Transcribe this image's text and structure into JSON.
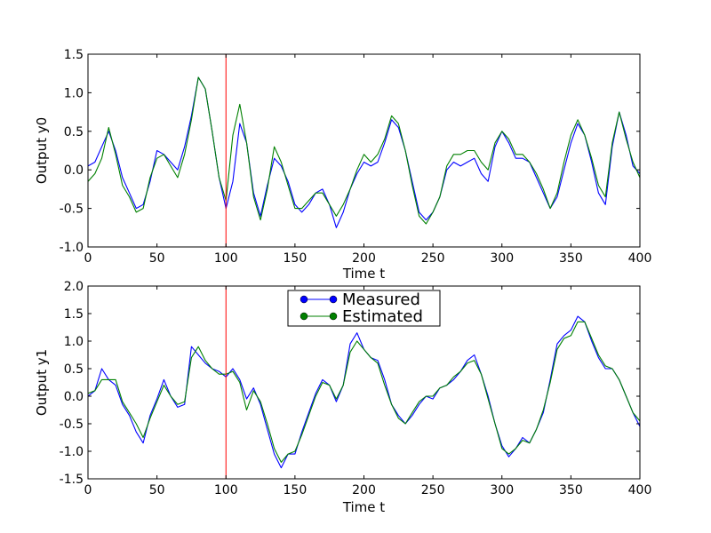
{
  "chart_data": [
    {
      "type": "line",
      "xlabel": "Time t",
      "ylabel": "Output y0",
      "xlim": [
        0,
        400
      ],
      "ylim": [
        -1.0,
        1.5
      ],
      "xticks": [
        "0",
        "50",
        "100",
        "150",
        "200",
        "250",
        "300",
        "350",
        "400"
      ],
      "yticks": [
        "-1.0",
        "-0.5",
        "0.0",
        "0.5",
        "1.0",
        "1.5"
      ],
      "grid": false,
      "vline": {
        "x": 100,
        "color": "#ff0000"
      },
      "x": [
        0,
        5,
        10,
        15,
        20,
        25,
        30,
        35,
        40,
        45,
        50,
        55,
        60,
        65,
        70,
        75,
        80,
        85,
        90,
        95,
        100,
        105,
        110,
        115,
        120,
        125,
        130,
        135,
        140,
        145,
        150,
        155,
        160,
        165,
        170,
        175,
        180,
        185,
        190,
        195,
        200,
        205,
        210,
        215,
        220,
        225,
        230,
        235,
        240,
        245,
        250,
        255,
        260,
        265,
        270,
        275,
        280,
        285,
        290,
        295,
        300,
        305,
        310,
        315,
        320,
        325,
        330,
        335,
        340,
        345,
        350,
        355,
        360,
        365,
        370,
        375,
        380,
        385,
        390,
        395,
        400
      ],
      "series": [
        {
          "name": "Measured",
          "color": "#0000ff",
          "values": [
            0.05,
            0.1,
            0.3,
            0.5,
            0.25,
            -0.1,
            -0.3,
            -0.5,
            -0.45,
            -0.15,
            0.25,
            0.2,
            0.1,
            0.0,
            0.3,
            0.7,
            1.2,
            1.05,
            0.5,
            -0.1,
            -0.5,
            -0.15,
            0.6,
            0.35,
            -0.3,
            -0.6,
            -0.2,
            0.15,
            0.05,
            -0.15,
            -0.45,
            -0.55,
            -0.45,
            -0.3,
            -0.25,
            -0.45,
            -0.75,
            -0.55,
            -0.25,
            -0.05,
            0.1,
            0.05,
            0.1,
            0.35,
            0.65,
            0.55,
            0.25,
            -0.15,
            -0.55,
            -0.65,
            -0.55,
            -0.35,
            0.0,
            0.1,
            0.05,
            0.1,
            0.15,
            -0.05,
            -0.15,
            0.3,
            0.5,
            0.35,
            0.15,
            0.15,
            0.1,
            -0.1,
            -0.3,
            -0.5,
            -0.35,
            0.0,
            0.35,
            0.6,
            0.45,
            0.1,
            -0.3,
            -0.45,
            0.3,
            0.75,
            0.45,
            0.05,
            -0.05
          ]
        },
        {
          "name": "Estimated",
          "color": "#008000",
          "values": [
            -0.15,
            -0.05,
            0.15,
            0.55,
            0.2,
            -0.2,
            -0.35,
            -0.55,
            -0.5,
            -0.1,
            0.15,
            0.2,
            0.05,
            -0.1,
            0.2,
            0.65,
            1.2,
            1.05,
            0.5,
            -0.1,
            -0.4,
            0.45,
            0.85,
            0.35,
            -0.35,
            -0.65,
            -0.25,
            0.3,
            0.1,
            -0.2,
            -0.5,
            -0.5,
            -0.4,
            -0.3,
            -0.3,
            -0.45,
            -0.6,
            -0.45,
            -0.25,
            0.0,
            0.2,
            0.1,
            0.2,
            0.4,
            0.7,
            0.6,
            0.25,
            -0.2,
            -0.6,
            -0.7,
            -0.55,
            -0.35,
            0.05,
            0.2,
            0.2,
            0.25,
            0.25,
            0.1,
            0.0,
            0.35,
            0.5,
            0.4,
            0.2,
            0.2,
            0.1,
            -0.05,
            -0.25,
            -0.5,
            -0.3,
            0.1,
            0.45,
            0.65,
            0.45,
            0.15,
            -0.2,
            -0.35,
            0.35,
            0.75,
            0.4,
            0.1,
            -0.1
          ]
        }
      ]
    },
    {
      "type": "line",
      "xlabel": "Time t",
      "ylabel": "Output y1",
      "xlim": [
        0,
        400
      ],
      "ylim": [
        -1.5,
        2.0
      ],
      "xticks": [
        "0",
        "50",
        "100",
        "150",
        "200",
        "250",
        "300",
        "350",
        "400"
      ],
      "yticks": [
        "-1.5",
        "-1.0",
        "-0.5",
        "0.0",
        "0.5",
        "1.0",
        "1.5",
        "2.0"
      ],
      "grid": false,
      "legend_position": "top-center",
      "vline": {
        "x": 100,
        "color": "#ff0000"
      },
      "x": [
        0,
        5,
        10,
        15,
        20,
        25,
        30,
        35,
        40,
        45,
        50,
        55,
        60,
        65,
        70,
        75,
        80,
        85,
        90,
        95,
        100,
        105,
        110,
        115,
        120,
        125,
        130,
        135,
        140,
        145,
        150,
        155,
        160,
        165,
        170,
        175,
        180,
        185,
        190,
        195,
        200,
        205,
        210,
        215,
        220,
        225,
        230,
        235,
        240,
        245,
        250,
        255,
        260,
        265,
        270,
        275,
        280,
        285,
        290,
        295,
        300,
        305,
        310,
        315,
        320,
        325,
        330,
        335,
        340,
        345,
        350,
        355,
        360,
        365,
        370,
        375,
        380,
        385,
        390,
        395,
        400
      ],
      "series": [
        {
          "name": "Measured",
          "color": "#0000ff",
          "values": [
            0.0,
            0.1,
            0.5,
            0.3,
            0.2,
            -0.15,
            -0.35,
            -0.65,
            -0.85,
            -0.35,
            -0.05,
            0.3,
            0.0,
            -0.2,
            -0.15,
            0.9,
            0.75,
            0.6,
            0.5,
            0.45,
            0.35,
            0.5,
            0.3,
            -0.05,
            0.15,
            -0.15,
            -0.6,
            -1.05,
            -1.3,
            -1.05,
            -1.05,
            -0.65,
            -0.3,
            0.05,
            0.3,
            0.2,
            -0.1,
            0.2,
            0.95,
            1.15,
            0.85,
            0.7,
            0.65,
            0.3,
            -0.15,
            -0.35,
            -0.5,
            -0.35,
            -0.15,
            0.0,
            -0.05,
            0.15,
            0.2,
            0.3,
            0.45,
            0.65,
            0.75,
            0.4,
            0.0,
            -0.5,
            -0.9,
            -1.1,
            -0.95,
            -0.75,
            -0.85,
            -0.6,
            -0.3,
            0.3,
            0.95,
            1.1,
            1.2,
            1.45,
            1.35,
            1.0,
            0.7,
            0.5,
            0.5,
            0.3,
            0.0,
            -0.3,
            -0.55
          ]
        },
        {
          "name": "Estimated",
          "color": "#008000",
          "values": [
            0.05,
            0.1,
            0.3,
            0.3,
            0.3,
            -0.1,
            -0.3,
            -0.5,
            -0.75,
            -0.4,
            -0.1,
            0.2,
            0.0,
            -0.15,
            -0.1,
            0.7,
            0.9,
            0.65,
            0.5,
            0.4,
            0.4,
            0.45,
            0.25,
            -0.25,
            0.1,
            -0.1,
            -0.5,
            -0.95,
            -1.2,
            -1.05,
            -1.0,
            -0.7,
            -0.35,
            0.0,
            0.25,
            0.2,
            -0.05,
            0.2,
            0.8,
            1.0,
            0.85,
            0.7,
            0.6,
            0.2,
            -0.15,
            -0.4,
            -0.5,
            -0.3,
            -0.1,
            0.0,
            0.0,
            0.15,
            0.2,
            0.35,
            0.45,
            0.6,
            0.65,
            0.4,
            -0.05,
            -0.5,
            -0.95,
            -1.05,
            -0.95,
            -0.8,
            -0.85,
            -0.6,
            -0.25,
            0.25,
            0.85,
            1.05,
            1.1,
            1.35,
            1.35,
            1.05,
            0.75,
            0.55,
            0.5,
            0.3,
            0.0,
            -0.3,
            -0.45
          ]
        }
      ]
    }
  ]
}
